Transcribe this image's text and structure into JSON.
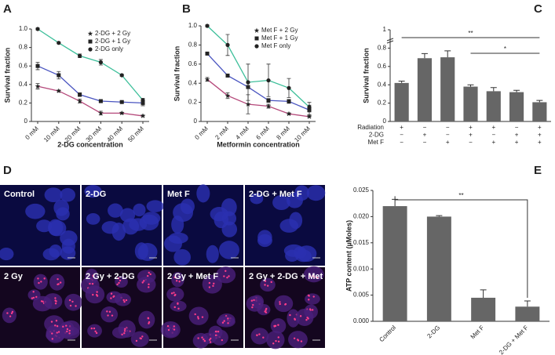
{
  "chart_data": [
    {
      "type": "line",
      "panel_label": "A",
      "xlabel": "2-DG concentration",
      "ylabel": "Survival fraction",
      "categories": [
        "0 mM",
        "10 mM",
        "20 mM",
        "30 mM",
        "40 mM",
        "50 mM"
      ],
      "ylim": [
        0,
        1
      ],
      "yticks": [
        0,
        0.2,
        0.4,
        0.6,
        0.8,
        {
          "value": 1,
          "label": "1.0"
        }
      ],
      "legend": "upper right",
      "series": [
        {
          "name": "2-DG + 2 Gy",
          "color": "#b5487a",
          "marker": "star",
          "values": [
            0.38,
            0.33,
            0.22,
            0.09,
            0.09,
            0.06
          ],
          "errors": [
            0.03,
            0.01,
            0.02,
            0.02,
            0.01,
            0.01
          ]
        },
        {
          "name": "2-DG + 1 Gy",
          "color": "#4a55c0",
          "marker": "square",
          "values": [
            0.6,
            0.5,
            0.29,
            0.22,
            0.21,
            0.2
          ],
          "errors": [
            0.04,
            0.04,
            0.02,
            0.01,
            0.01,
            0.03
          ]
        },
        {
          "name": "2-DG only",
          "color": "#3dbf9a",
          "marker": "circle",
          "values": [
            1.0,
            0.85,
            0.71,
            0.64,
            0.5,
            0.23
          ],
          "errors": [
            0.01,
            0.01,
            0.02,
            0.03,
            0.01,
            0.02
          ]
        }
      ]
    },
    {
      "type": "line",
      "panel_label": "B",
      "xlabel": "Metformin concentration",
      "ylabel": "Survival fraction",
      "categories": [
        "0 mM",
        "2 mM",
        "4 mM",
        "6 mM",
        "8 mM",
        "10 mM"
      ],
      "ylim": [
        0,
        1
      ],
      "yticks": [
        0,
        0.2,
        0.4,
        0.6,
        0.8,
        {
          "value": 1,
          "label": "1.0"
        }
      ],
      "legend": "upper right",
      "series": [
        {
          "name": "Met F + 2 Gy",
          "color": "#b5487a",
          "marker": "star",
          "values": [
            0.44,
            0.27,
            0.18,
            0.16,
            0.08,
            0.05
          ],
          "errors": [
            0.02,
            0.03,
            0.1,
            0.02,
            0.01,
            0.01
          ]
        },
        {
          "name": "Met F + 1 Gy",
          "color": "#4a55c0",
          "marker": "square",
          "values": [
            0.71,
            0.48,
            0.36,
            0.22,
            0.21,
            0.12
          ],
          "errors": [
            0.01,
            0.01,
            0.01,
            0.02,
            0.02,
            0.05
          ]
        },
        {
          "name": "Met F only",
          "color": "#3dbf9a",
          "marker": "circle",
          "values": [
            1.0,
            0.8,
            0.41,
            0.43,
            0.35,
            0.15
          ],
          "errors": [
            0.01,
            0.11,
            0.19,
            0.17,
            0.1,
            0.05
          ]
        }
      ]
    },
    {
      "type": "bar",
      "panel_label": "C",
      "ylabel": "Survival fraction",
      "color": "#666666",
      "values": [
        0.42,
        0.69,
        0.7,
        0.38,
        0.33,
        0.32,
        0.21
      ],
      "errors": [
        0.02,
        0.05,
        0.07,
        0.02,
        0.04,
        0.02,
        0.02
      ],
      "ylim": [
        0,
        1
      ],
      "yticks": [
        0,
        0.2,
        0.4,
        0.6,
        0.8,
        1
      ],
      "conditions": [
        {
          "label": "Radiation",
          "marks": [
            "+",
            "−",
            "−",
            "+",
            "+",
            "−",
            "+"
          ]
        },
        {
          "label": "2-DG",
          "marks": [
            "−",
            "+",
            "−",
            "+",
            "−",
            "+",
            "+"
          ]
        },
        {
          "label": "Met F",
          "marks": [
            "−",
            "−",
            "+",
            "−",
            "+",
            "+",
            "+"
          ]
        }
      ],
      "annotations": [
        {
          "text": "**",
          "between": [
            0,
            6
          ]
        },
        {
          "text": "*",
          "between": [
            3,
            6
          ]
        }
      ]
    },
    {
      "type": "bar",
      "panel_label": "E",
      "ylabel": "ATP content (µMoles)",
      "color": "#666666",
      "categories": [
        "Control",
        "2-DG",
        "Met F",
        "2-DG + Met F"
      ],
      "values": [
        0.022,
        0.02,
        0.0045,
        0.0028
      ],
      "errors": [
        0.0013,
        0.0002,
        0.0015,
        0.0011
      ],
      "ylim": [
        0,
        0.025
      ],
      "yticks": [
        {
          "value": 0,
          "label": "0.000"
        },
        0.005,
        {
          "value": 0.01,
          "label": "0.010"
        },
        0.015,
        {
          "value": 0.02,
          "label": "0.020"
        },
        0.025
      ],
      "annotations": [
        {
          "text": "**",
          "between": [
            0,
            3
          ]
        }
      ]
    }
  ],
  "figure_d": {
    "panel_label": "D",
    "panels": [
      "Control",
      "2-DG",
      "Met F",
      "2-DG + Met F",
      "2 Gy",
      "2 Gy + 2-DG",
      "2 Gy + Met F",
      "2 Gy + 2-DG + Met F"
    ]
  }
}
